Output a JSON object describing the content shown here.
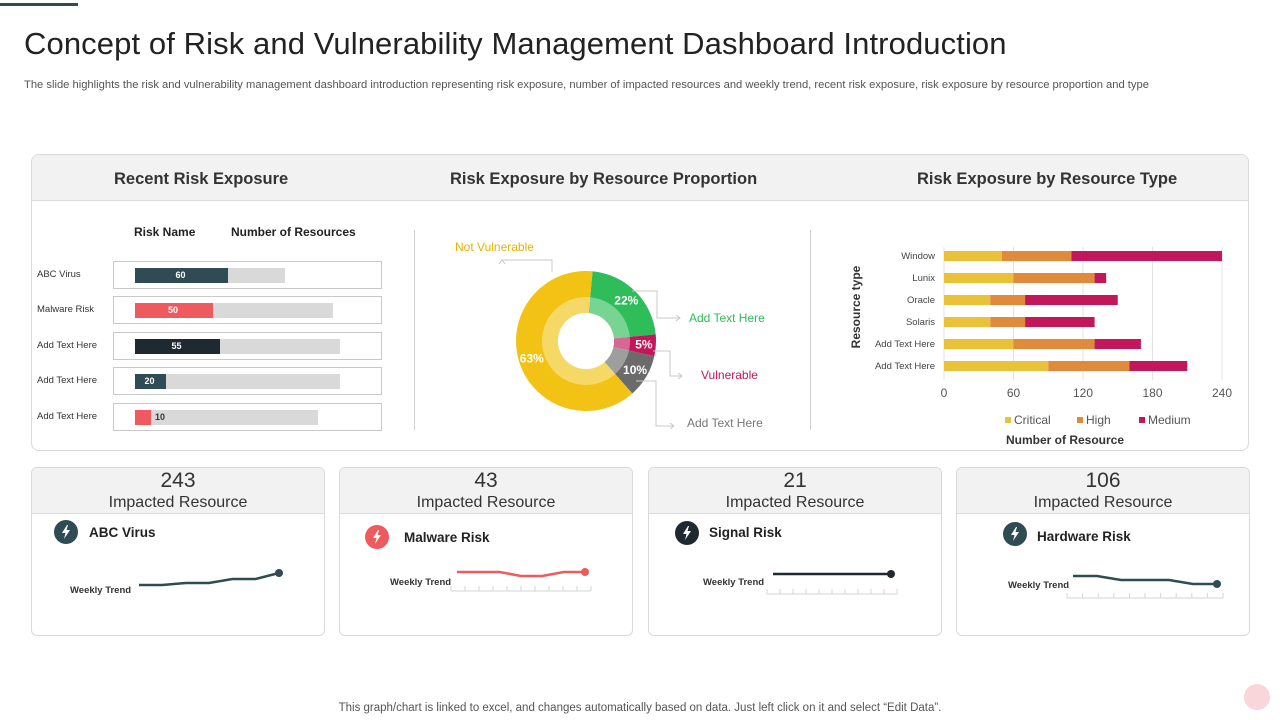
{
  "header": {
    "title": "Concept of Risk and Vulnerability Management Dashboard Introduction",
    "subtitle": "The slide highlights the risk and vulnerability management dashboard introduction representing risk exposure, number of impacted resources and weekly trend, recent risk exposure, risk exposure by  resource proportion and type"
  },
  "sections": {
    "recent": "Recent Risk Exposure",
    "proportion": "Risk Exposure by  Resource Proportion",
    "type": "Risk Exposure by Resource Type"
  },
  "recent_risk": {
    "col_name": "Risk Name",
    "col_resources": "Number of Resources",
    "rows": [
      {
        "name": "ABC Virus",
        "value": "60",
        "color": "#2f4b54",
        "track": 0.68
      },
      {
        "name": "Malware Risk",
        "value": "50",
        "color": "#ef5a5f",
        "track": 0.9
      },
      {
        "name": "Add Text Here",
        "value": "55",
        "color": "#1f2a30",
        "track": 0.93
      },
      {
        "name": "Add Text Here",
        "value": "20",
        "color": "#2f4b54",
        "track": 0.93
      },
      {
        "name": "Add Text Here",
        "value": "10",
        "color": "#ef5a5f",
        "track": 0.83
      }
    ]
  },
  "proportion_chart": {
    "type": "pie",
    "slices": [
      {
        "label": "Not Vulnerable",
        "value": 63,
        "text": "63%",
        "color": "#f2c314"
      },
      {
        "label": "Add Text Here",
        "value": 22,
        "text": "22%",
        "color": "#2ebd59"
      },
      {
        "label": "Vulnerable",
        "value": 5,
        "text": "5%",
        "color": "#c2185b"
      },
      {
        "label": "Add Text Here",
        "value": 10,
        "text": "10%",
        "color": "#6b6b6b"
      }
    ],
    "callouts": {
      "not_vulnerable": "Not Vulnerable",
      "green": "Add Text Here",
      "vulnerable": "Vulnerable",
      "gray": "Add Text Here"
    }
  },
  "chart_data": {
    "type": "bar",
    "orientation": "horizontal",
    "stacked": true,
    "categories": [
      "Window",
      "Lunix",
      "Oracle",
      "Solaris",
      "Add Text Here",
      "Add Text Here"
    ],
    "series": [
      {
        "name": "Critical",
        "color": "#e9c23a",
        "values": [
          50,
          60,
          40,
          40,
          60,
          90
        ]
      },
      {
        "name": "High",
        "color": "#e08a3c",
        "values": [
          60,
          70,
          30,
          30,
          70,
          70
        ]
      },
      {
        "name": "Medium",
        "color": "#c2185b",
        "values": [
          130,
          10,
          80,
          60,
          40,
          50
        ]
      }
    ],
    "xlim": [
      0,
      240
    ],
    "xticks": [
      "0",
      "60",
      "120",
      "180",
      "240"
    ],
    "xlabel": "Number of Resource",
    "ylabel": "Resource type",
    "legend": "bottom",
    "grid": true
  },
  "kpis": [
    {
      "number": "243",
      "label": "Impacted Resource",
      "name": "ABC Virus",
      "trend_label": "Weekly Trend",
      "color": "#2f4b54",
      "trend": [
        0,
        0,
        1,
        1,
        3,
        3,
        6
      ]
    },
    {
      "number": "43",
      "label": "Impacted Resource",
      "name": "Malware Risk",
      "trend_label": "Weekly Trend",
      "color": "#ef5a5f",
      "trend": [
        3,
        3,
        3,
        1,
        1,
        3,
        3
      ]
    },
    {
      "number": "21",
      "label": "Impacted Resource",
      "name": "Signal Risk",
      "trend_label": "Weekly Trend",
      "color": "#1f2a30",
      "trend": [
        3,
        3,
        3,
        3,
        3,
        3,
        3
      ]
    },
    {
      "number": "106",
      "label": "Impacted Resource",
      "name": "Hardware Risk",
      "trend_label": "Weekly Trend",
      "color": "#2f4b54",
      "trend": [
        4,
        4,
        2,
        2,
        2,
        0,
        0
      ]
    }
  ],
  "footer": "This graph/chart is linked to excel,  and changes automatically based on data. Just left click on it and select “Edit Data”."
}
